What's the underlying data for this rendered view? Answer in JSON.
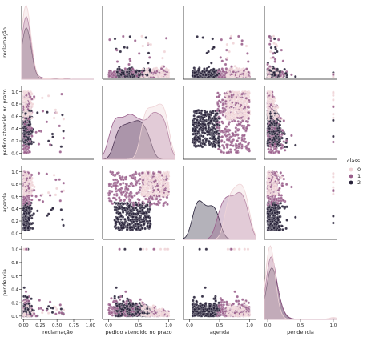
{
  "chart_data": {
    "type": "pairplot",
    "variables": [
      "reclamação",
      "pedido atendido no prazo",
      "agenda",
      "pendencia"
    ],
    "hue": "class",
    "legend": {
      "title": "class",
      "placement": "right",
      "entries": [
        {
          "label": "0",
          "color": "#efd4d7"
        },
        {
          "label": "1",
          "color": "#9a5f8c"
        },
        {
          "label": "2",
          "color": "#272139"
        }
      ]
    },
    "colors": {
      "class_0": "#efd4d7",
      "class_1": "#9a5f8c",
      "class_2": "#272139",
      "axis": "#222222"
    },
    "tick_labels": {
      "reclamação": [
        "0.00",
        "0.25",
        "0.50",
        "0.75",
        "1.00"
      ],
      "pedido atendido no prazo": [
        "0.0",
        "0.5",
        "1.0"
      ],
      "agenda": [
        "0.0",
        "0.5",
        "1.0"
      ],
      "pendencia": [
        "0.0",
        "0.5",
        "1.0"
      ],
      "y_ticks": [
        "0.0",
        "0.2",
        "0.4",
        "0.6",
        "0.8",
        "1.0"
      ]
    },
    "axis_ranges": {
      "reclamação": [
        -0.03,
        1.05
      ],
      "pedido atendido no prazo": [
        -0.1,
        1.1
      ],
      "agenda": [
        -0.1,
        1.1
      ],
      "pendencia": [
        -0.05,
        1.05
      ]
    },
    "diagonal": "kde",
    "off_diagonal": "scatter",
    "grid": false
  }
}
